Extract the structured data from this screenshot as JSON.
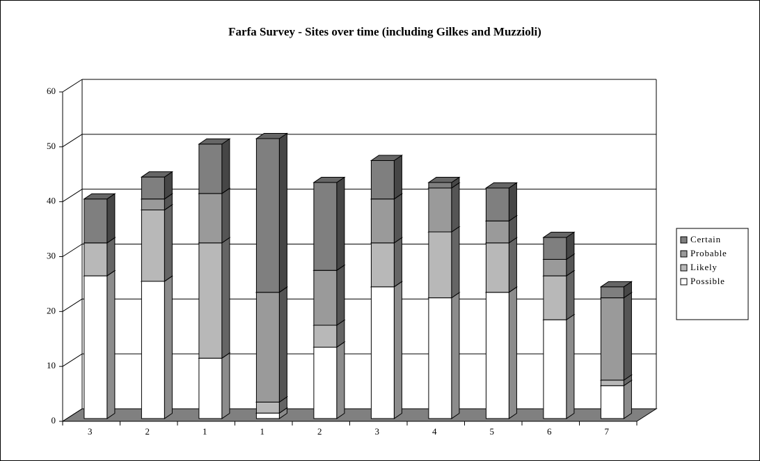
{
  "chart_data": {
    "type": "bar3d_stacked",
    "title": "Farfa Survey - Sites over time (including Gilkes and Muzzioli)",
    "categories": [
      "3",
      "2",
      "1",
      "1",
      "2",
      "3",
      "4",
      "5",
      "6",
      "7"
    ],
    "series": [
      {
        "name": "Possible",
        "color": "#ffffff",
        "values": [
          26,
          25,
          11,
          1,
          13,
          24,
          22,
          23,
          18,
          6
        ]
      },
      {
        "name": "Likely",
        "color": "#b8b8b8",
        "values": [
          6,
          13,
          21,
          2,
          4,
          8,
          12,
          9,
          8,
          1
        ]
      },
      {
        "name": "Probable",
        "color": "#9a9a9a",
        "values": [
          0,
          2,
          9,
          20,
          10,
          8,
          8,
          4,
          3,
          15
        ]
      },
      {
        "name": "Certain",
        "color": "#7f7f7f",
        "values": [
          8,
          4,
          9,
          28,
          16,
          7,
          1,
          6,
          4,
          2
        ]
      }
    ],
    "ylim": [
      0,
      60
    ],
    "yticks": [
      0,
      10,
      20,
      30,
      40,
      50,
      60
    ],
    "grid": true,
    "legend": "right"
  }
}
